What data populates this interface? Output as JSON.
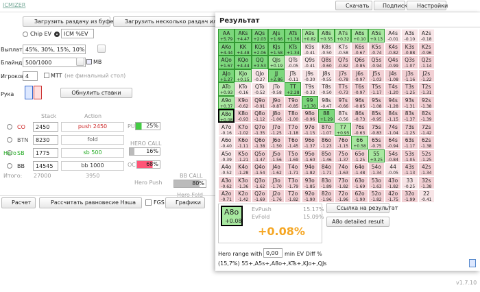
{
  "header": {
    "logo": "ICMIZER",
    "download": "Скачать",
    "subscribe": "Подписка",
    "settings": "Настройки"
  },
  "left": {
    "load_buffer": "Загрузить раздачу из буфера",
    "load_many": "Загрузить несколько раздач или тур",
    "chip_ev": "Chip EV",
    "icm_ev": "ICM %EV",
    "payouts_label": "Выплаты",
    "payouts": "45%, 30%, 15%, 10%",
    "blinds_label": "Блайнды",
    "blinds": "500/1000",
    "mb": "MB",
    "players_label": "Игроков",
    "players": "4",
    "mtt": "MTT",
    "mtt_note": "(не финальный стол)",
    "hand_label": "Рука",
    "reset": "Обнулить ставки",
    "stack_head": "Stack",
    "action_head": "Action",
    "rows": [
      {
        "pos": "CO",
        "stack": "2450",
        "action": "push 2450"
      },
      {
        "pos": "BTN",
        "stack": "8230",
        "action": "fold"
      },
      {
        "hero": "Hero",
        "pos": "SB",
        "stack": "1775",
        "action": "sb 500"
      },
      {
        "pos": "BB",
        "stack": "14545",
        "action": "bb 1000"
      }
    ],
    "total_label": "Итого:",
    "total_stack": "27000",
    "total_action": "3950",
    "pu": "PU",
    "pu_pct": "25%",
    "hero_call": "HERO CALL",
    "hero_call_pct": "16%",
    "oc": "OC",
    "oc_pct": "68%",
    "bb_call": "BB CALL",
    "bb_call_pct": "80%",
    "hero_push": "Hero Push",
    "hero_fold": "Hero Fold",
    "calc": "Расчет",
    "nash": "Рассчитать равновесие Нэша",
    "fgs": "FGS",
    "graphs": "Графики"
  },
  "result": {
    "title": "Результат",
    "grid": [
      [
        [
          "AA",
          "+5.79"
        ],
        [
          "AKs",
          "+4.47"
        ],
        [
          "AQs",
          "+2.03"
        ],
        [
          "AJs",
          "+1.66"
        ],
        [
          "ATs",
          "+1.36"
        ],
        [
          "A9s",
          "+0.82"
        ],
        [
          "A8s",
          "+0.55"
        ],
        [
          "A7s",
          "+0.32"
        ],
        [
          "A6s",
          "+0.10"
        ],
        [
          "A5s",
          "+0.13"
        ],
        [
          "A4s",
          "-0.01"
        ],
        [
          "A3s",
          "-0.10"
        ],
        [
          "A2s",
          "-0.18"
        ]
      ],
      [
        [
          "AKo",
          "+4.44"
        ],
        [
          "KK",
          "+4.48"
        ],
        [
          "KQs",
          "+2.06"
        ],
        [
          "KJs",
          "+1.58"
        ],
        [
          "KTs",
          "+1.34"
        ],
        [
          "K9s",
          "-0.41"
        ],
        [
          "K8s",
          "-0.50"
        ],
        [
          "K7s",
          "-0.58"
        ],
        [
          "K6s",
          "-0.67"
        ],
        [
          "K5s",
          "-0.74"
        ],
        [
          "K4s",
          "-0.82"
        ],
        [
          "K3s",
          "-0.88"
        ],
        [
          "K2s",
          "-0.96"
        ]
      ],
      [
        [
          "AQo",
          "+1.67"
        ],
        [
          "KQo",
          "+4.44"
        ],
        [
          "QQ",
          "+3.53"
        ],
        [
          "QJs",
          "+0.19"
        ],
        [
          "QTs",
          "-0.05"
        ],
        [
          "Q9s",
          "-0.41"
        ],
        [
          "Q8s",
          "-0.60"
        ],
        [
          "Q7s",
          "-0.82"
        ],
        [
          "Q6s",
          "-0.85"
        ],
        [
          "Q5s",
          "-0.94"
        ],
        [
          "Q4s",
          "-0.99"
        ],
        [
          "Q3s",
          "-1.07"
        ],
        [
          "Q2s",
          "-1.14"
        ]
      ],
      [
        [
          "AJo",
          "+1.27"
        ],
        [
          "KJo",
          "+0.15"
        ],
        [
          "QJo",
          "-0.27"
        ],
        [
          "JJ",
          "+2.86"
        ],
        [
          "JTs",
          "-0.11"
        ],
        [
          "J9s",
          "-0.30"
        ],
        [
          "J8s",
          "-0.55"
        ],
        [
          "J7s",
          "-0.78"
        ],
        [
          "J6s",
          "-0.97"
        ],
        [
          "J5s",
          "-1.03"
        ],
        [
          "J4s",
          "-1.08"
        ],
        [
          "J3s",
          "-1.16"
        ],
        [
          "J2s",
          "-1.22"
        ]
      ],
      [
        [
          "ATo",
          "+0.93"
        ],
        [
          "KTo",
          "-0.16"
        ],
        [
          "QTo",
          "-0.52"
        ],
        [
          "JTo",
          "-0.58"
        ],
        [
          "TT",
          "+2.28"
        ],
        [
          "T9s",
          "-0.33"
        ],
        [
          "T8s",
          "-0.50"
        ],
        [
          "T7s",
          "-0.73"
        ],
        [
          "T6s",
          "-0.97"
        ],
        [
          "T5s",
          "-1.17"
        ],
        [
          "T4s",
          "-1.20"
        ],
        [
          "T3s",
          "-1.25"
        ],
        [
          "T2s",
          "-1.31"
        ]
      ],
      [
        [
          "A9o",
          "+0.37"
        ],
        [
          "K9o",
          "-0.62"
        ],
        [
          "Q9o",
          "-0.91"
        ],
        [
          "J9o",
          "-0.87"
        ],
        [
          "T9o",
          "-0.85"
        ],
        [
          "99",
          "+1.70"
        ],
        [
          "98s",
          "-0.47"
        ],
        [
          "97s",
          "-0.66"
        ],
        [
          "96s",
          "-0.85"
        ],
        [
          "95s",
          "-1.08"
        ],
        [
          "94s",
          "-1.28"
        ],
        [
          "93s",
          "-1.31"
        ],
        [
          "92s",
          "-1.38"
        ]
      ],
      [
        [
          "A8o",
          "+0.08"
        ],
        [
          "K8o",
          "-0.93"
        ],
        [
          "Q8o",
          "-1.12"
        ],
        [
          "J8o",
          "-1.06"
        ],
        [
          "T8o",
          "-1.00"
        ],
        [
          "98o",
          "-0.96"
        ],
        [
          "88",
          "+1.29"
        ],
        [
          "87s",
          "-0.56"
        ],
        [
          "86s",
          "-0.73"
        ],
        [
          "85s",
          "-0.95"
        ],
        [
          "84s",
          "-1.15"
        ],
        [
          "83s",
          "-1.37"
        ],
        [
          "82s",
          "-1.39"
        ]
      ],
      [
        [
          "A7o",
          "-0.16"
        ],
        [
          "K7o",
          "-1.02"
        ],
        [
          "Q7o",
          "-1.35"
        ],
        [
          "J7o",
          "-1.25"
        ],
        [
          "T7o",
          "-1.18"
        ],
        [
          "97o",
          "-1.15"
        ],
        [
          "87o",
          "-1.07"
        ],
        [
          "77",
          "+0.95"
        ],
        [
          "76s",
          "-0.63"
        ],
        [
          "75s",
          "-0.83"
        ],
        [
          "74s",
          "-1.04"
        ],
        [
          "73s",
          "-1.25"
        ],
        [
          "72s",
          "-1.42"
        ]
      ],
      [
        [
          "A6o",
          "-0.40"
        ],
        [
          "K6o",
          "-1.11"
        ],
        [
          "Q6o",
          "-1.38"
        ],
        [
          "J6o",
          "-1.50"
        ],
        [
          "T6o",
          "-1.45"
        ],
        [
          "96o",
          "-1.37"
        ],
        [
          "86o",
          "-1.23"
        ],
        [
          "76o",
          "-1.15"
        ],
        [
          "66",
          "+0.58"
        ],
        [
          "65s",
          "-0.75"
        ],
        [
          "64s",
          "-0.94"
        ],
        [
          "63s",
          "-1.17"
        ],
        [
          "62s",
          "-1.38"
        ]
      ],
      [
        [
          "A5o",
          "-0.39"
        ],
        [
          "K5o",
          "-1.21"
        ],
        [
          "Q5o",
          "-1.47"
        ],
        [
          "J5o",
          "-1.56"
        ],
        [
          "T5o",
          "-1.69"
        ],
        [
          "95o",
          "-1.60"
        ],
        [
          "85o",
          "-1.46"
        ],
        [
          "75o",
          "-1.37"
        ],
        [
          "65o",
          "-1.25"
        ],
        [
          "55",
          "+0.25"
        ],
        [
          "54s",
          "-0.84"
        ],
        [
          "53s",
          "-1.05"
        ],
        [
          "52s",
          "-1.25"
        ]
      ],
      [
        [
          "A4o",
          "-0.52"
        ],
        [
          "K4o",
          "-1.28"
        ],
        [
          "Q4o",
          "-1.54"
        ],
        [
          "J4o",
          "-1.62"
        ],
        [
          "T4o",
          "-1.71"
        ],
        [
          "94o",
          "-1.82"
        ],
        [
          "84o",
          "-1.71"
        ],
        [
          "74o",
          "-1.63"
        ],
        [
          "64o",
          "-1.48"
        ],
        [
          "54o",
          "-1.34"
        ],
        [
          "44",
          "-0.05"
        ],
        [
          "43s",
          "-1.13"
        ],
        [
          "42s",
          "-1.34"
        ]
      ],
      [
        [
          "A3o",
          "-0.62"
        ],
        [
          "K3o",
          "-1.36"
        ],
        [
          "Q3o",
          "-1.62"
        ],
        [
          "J3o",
          "-1.70"
        ],
        [
          "T3o",
          "-1.79"
        ],
        [
          "93o",
          "-1.85"
        ],
        [
          "83o",
          "-1.89"
        ],
        [
          "73o",
          "-1.82"
        ],
        [
          "63o",
          "-1.69"
        ],
        [
          "53o",
          "-1.63"
        ],
        [
          "43o",
          "-1.82"
        ],
        [
          "33",
          "-0.25"
        ],
        [
          "32s",
          "-1.38"
        ]
      ],
      [
        [
          "A2o",
          "-0.71"
        ],
        [
          "K2o",
          "-1.42"
        ],
        [
          "Q2o",
          "-1.69"
        ],
        [
          "J2o",
          "-1.76"
        ],
        [
          "T2o",
          "-1.82"
        ],
        [
          "92o",
          "-1.90"
        ],
        [
          "82o",
          "-1.96"
        ],
        [
          "72o",
          "-1.96"
        ],
        [
          "62o",
          "-1.90"
        ],
        [
          "52o",
          "-1.82"
        ],
        [
          "42o",
          "-1.75"
        ],
        [
          "32o",
          "-1.99"
        ],
        [
          "22",
          "-0.41"
        ]
      ]
    ],
    "selected": {
      "hand": "A8o",
      "ev": "+0.08",
      "evpush_label": "EvPush",
      "evpush": "15.17%",
      "evfold_label": "EvFold",
      "evfold": "15.09%",
      "diff": "+0.08%"
    },
    "link": "Ссылка на результат",
    "detailed": "A8o detailed result",
    "range_label": "Hero range with",
    "range_input": "0,00",
    "range_suffix": "min EV Diff %",
    "range_text": "(15,7%) 55+,A5s+,A8o+,KTs+,KJo+,QJs"
  },
  "version": "v1.7.10"
}
